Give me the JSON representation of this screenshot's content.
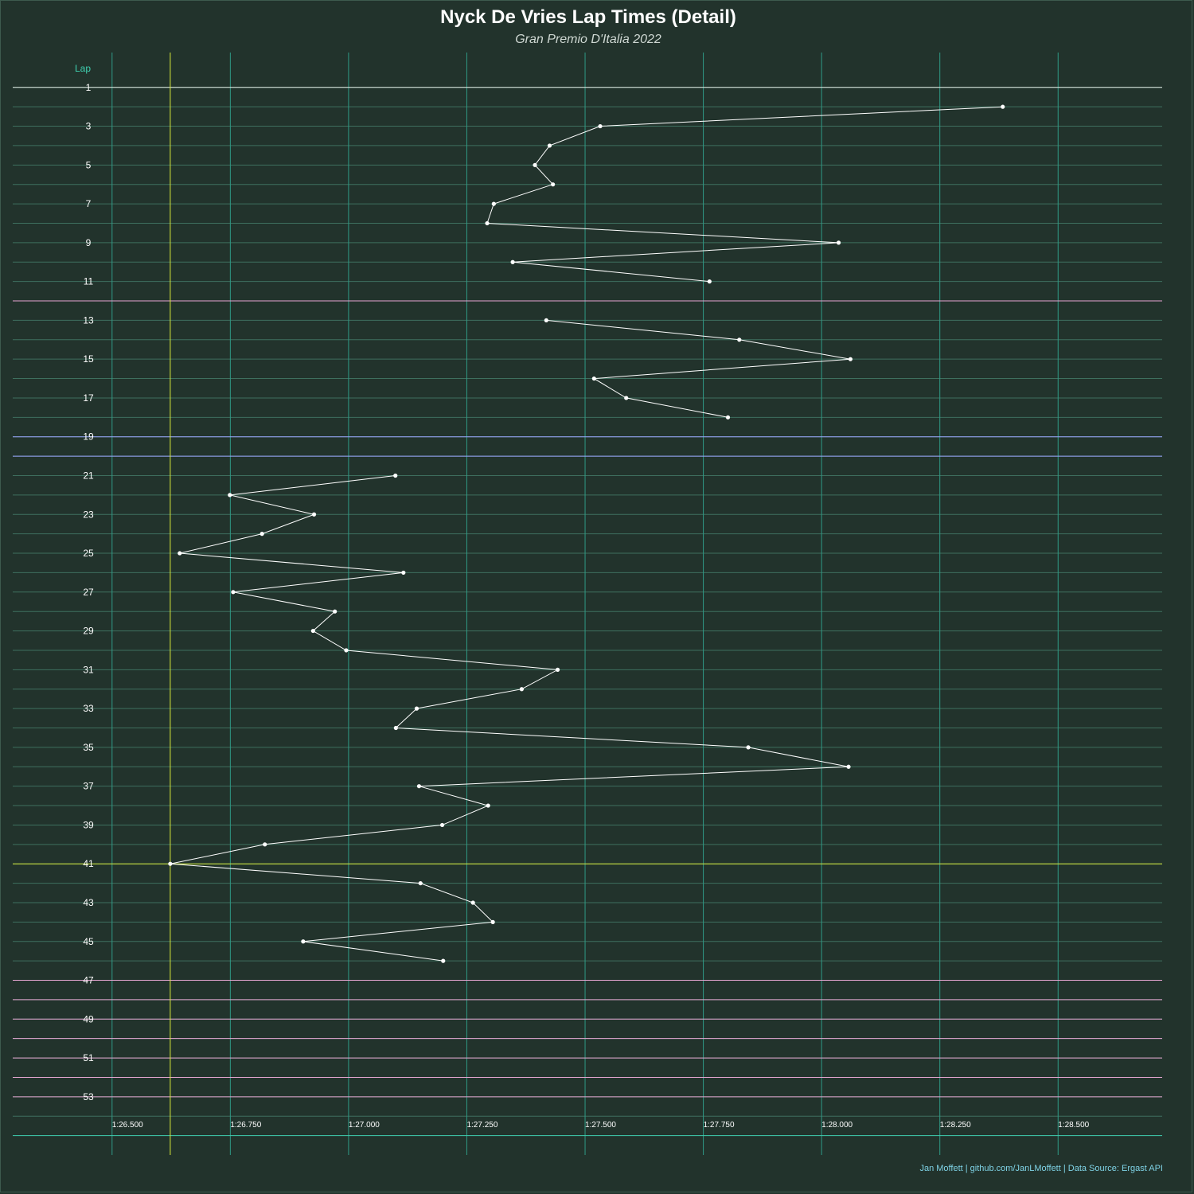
{
  "title": "Nyck De Vries Lap Times (Detail)",
  "subtitle": "Gran Premio D'Italia 2022",
  "caption": "Jan Moffett | github.com/JanLMoffett | Data Source: Ergast API",
  "colors": {
    "background": "#22332c",
    "grid_minor": "#3e6f5e",
    "grid_major_x": "#2f9a86",
    "axis_label": "#3fd0b0",
    "tick_text": "#ffffff",
    "line": "#ffffff",
    "pink": "#e6a6d2",
    "blue": "#9aa6ff",
    "yellow": "#d8ea3a",
    "teal": "#3fd0b0",
    "caption": "#7fd3e6"
  },
  "chart_data": {
    "type": "line",
    "orientation": "horizontal-time",
    "xlabel": "",
    "ylabel": "Lap",
    "x_ticks": [
      "1:26.500",
      "1:26.750",
      "1:27.000",
      "1:27.250",
      "1:27.500",
      "1:27.750",
      "1:28.000",
      "1:28.250",
      "1:28.500"
    ],
    "x_tick_values": [
      86.5,
      86.75,
      87.0,
      87.25,
      87.5,
      87.75,
      88.0,
      88.25,
      88.5
    ],
    "xlim": [
      86.29,
      88.72
    ],
    "y_ticks": [
      1,
      3,
      5,
      7,
      9,
      11,
      13,
      15,
      17,
      19,
      21,
      23,
      25,
      27,
      29,
      31,
      33,
      35,
      37,
      39,
      41,
      43,
      45,
      47,
      49,
      51,
      53
    ],
    "ylim": [
      -1,
      56
    ],
    "reference_lines": {
      "vertical_yellow": 86.623,
      "laps_white": [
        1
      ],
      "laps_pink": [
        12,
        47,
        48,
        49,
        50,
        51,
        52,
        53
      ],
      "laps_blue": [
        19,
        20
      ],
      "laps_yellow": [
        41
      ],
      "laps_teal": [
        55
      ]
    },
    "series": [
      {
        "segments": [
          [
            {
              "lap": 2,
              "time": 88.383
            },
            {
              "lap": 3,
              "time": 87.532
            },
            {
              "lap": 4,
              "time": 87.425
            },
            {
              "lap": 5,
              "time": 87.394
            },
            {
              "lap": 6,
              "time": 87.432
            },
            {
              "lap": 7,
              "time": 87.307
            },
            {
              "lap": 8,
              "time": 87.293
            },
            {
              "lap": 9,
              "time": 88.036
            },
            {
              "lap": 10,
              "time": 87.347
            },
            {
              "lap": 11,
              "time": 87.763
            }
          ],
          [
            {
              "lap": 13,
              "time": 87.418
            },
            {
              "lap": 14,
              "time": 87.826
            },
            {
              "lap": 15,
              "time": 88.061
            },
            {
              "lap": 16,
              "time": 87.519
            },
            {
              "lap": 17,
              "time": 87.587
            },
            {
              "lap": 18,
              "time": 87.802
            }
          ],
          [
            {
              "lap": 21,
              "time": 87.099
            },
            {
              "lap": 22,
              "time": 86.749
            },
            {
              "lap": 23,
              "time": 86.927
            },
            {
              "lap": 24,
              "time": 86.817
            },
            {
              "lap": 25,
              "time": 86.643
            },
            {
              "lap": 26,
              "time": 87.116
            },
            {
              "lap": 27,
              "time": 86.756
            },
            {
              "lap": 28,
              "time": 86.971
            },
            {
              "lap": 29,
              "time": 86.925
            },
            {
              "lap": 30,
              "time": 86.995
            },
            {
              "lap": 31,
              "time": 87.442
            },
            {
              "lap": 32,
              "time": 87.366
            },
            {
              "lap": 33,
              "time": 87.144
            },
            {
              "lap": 34,
              "time": 87.1
            },
            {
              "lap": 35,
              "time": 87.845
            },
            {
              "lap": 36,
              "time": 88.057
            },
            {
              "lap": 37,
              "time": 87.149
            },
            {
              "lap": 38,
              "time": 87.295
            },
            {
              "lap": 39,
              "time": 87.198
            },
            {
              "lap": 40,
              "time": 86.823
            },
            {
              "lap": 41,
              "time": 86.623
            },
            {
              "lap": 42,
              "time": 87.152
            },
            {
              "lap": 43,
              "time": 87.263
            },
            {
              "lap": 44,
              "time": 87.305
            },
            {
              "lap": 45,
              "time": 86.904
            },
            {
              "lap": 46,
              "time": 87.2
            }
          ]
        ]
      }
    ]
  }
}
